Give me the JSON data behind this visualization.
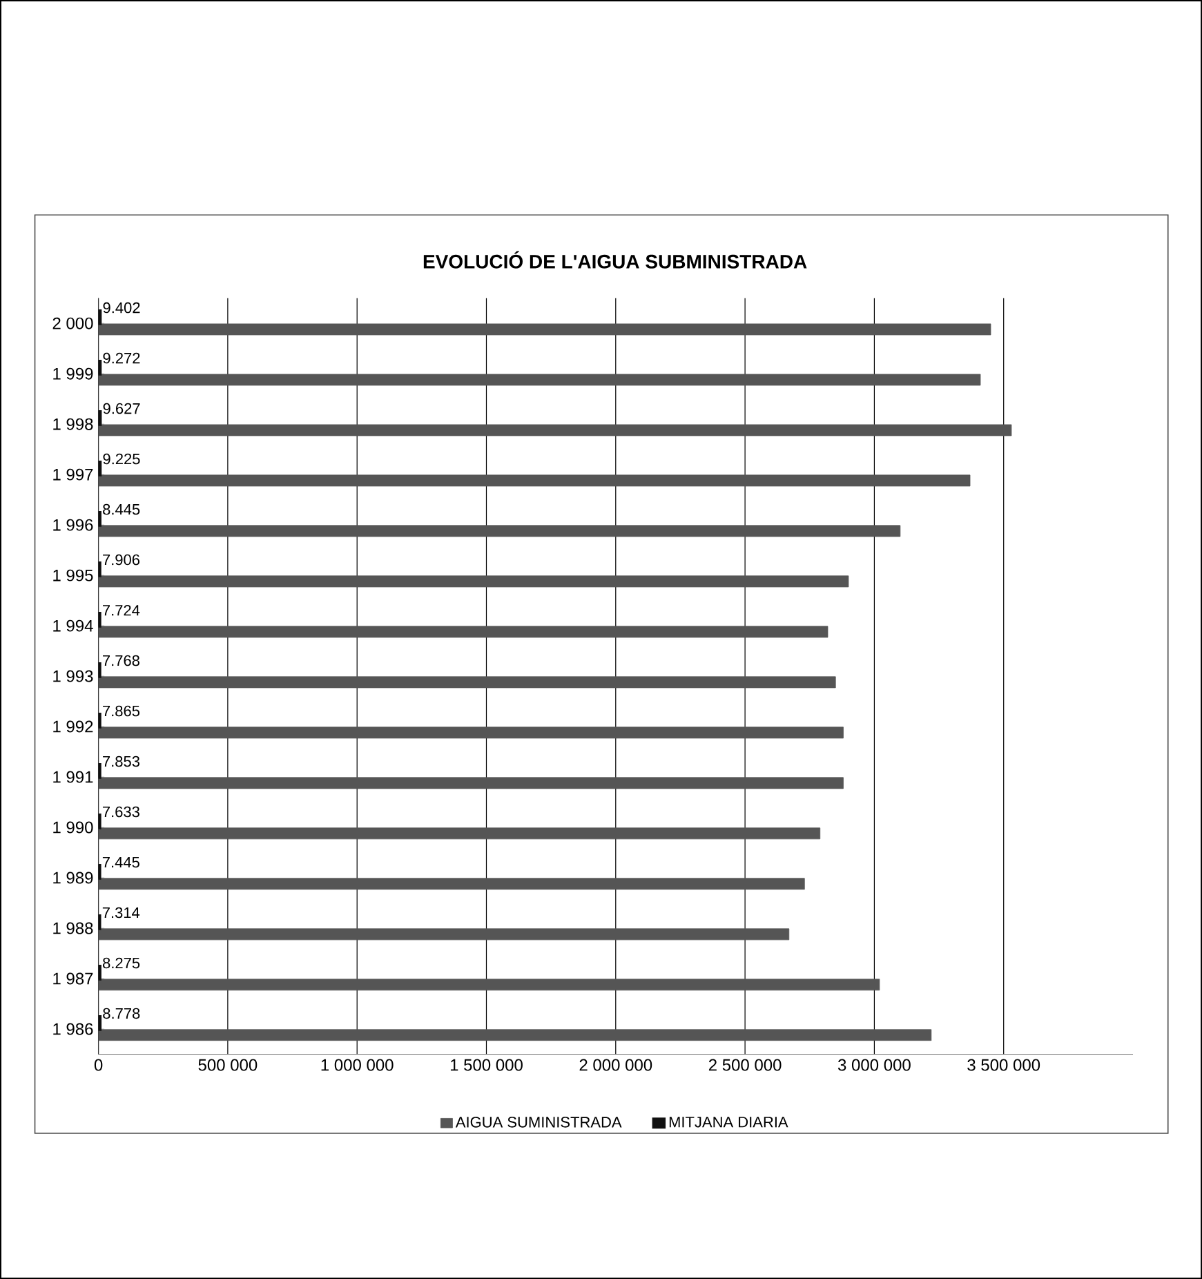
{
  "chart_data": {
    "type": "bar",
    "orientation": "horizontal",
    "title": "EVOLUCIÓ DE L'AIGUA SUBMINISTRADA",
    "categories": [
      "2 000",
      "1 999",
      "1 998",
      "1 997",
      "1 996",
      "1 995",
      "1 994",
      "1 993",
      "1 992",
      "1 991",
      "1 990",
      "1 989",
      "1 988",
      "1 987",
      "1 986"
    ],
    "series": [
      {
        "name": "AIGUA SUMINISTRADA",
        "color": "#555555",
        "values": [
          3450000,
          3410000,
          3530000,
          3370000,
          3100000,
          2900000,
          2820000,
          2850000,
          2880000,
          2880000,
          2790000,
          2730000,
          2670000,
          3020000,
          3220000
        ]
      },
      {
        "name": "MITJANA DIARIA",
        "color": "#111111",
        "values": [
          9402,
          9272,
          9627,
          9225,
          8445,
          7906,
          7724,
          7768,
          7865,
          7853,
          7633,
          7445,
          7314,
          8275,
          8778
        ],
        "value_labels": [
          "9.402",
          "9.272",
          "9.627",
          "9.225",
          "8.445",
          "7.906",
          "7.724",
          "7.768",
          "7.865",
          "7.853",
          "7.633",
          "7.445",
          "7.314",
          "8.275",
          "8.778"
        ]
      }
    ],
    "xlim": [
      0,
      4000000
    ],
    "xticks": [
      0,
      {
        "value": 500000,
        "label": "500 000"
      },
      {
        "value": 1000000,
        "label": "1 000 000"
      },
      {
        "value": 1500000,
        "label": "1 500 000"
      },
      {
        "value": 2000000,
        "label": "2 000 000"
      },
      {
        "value": 2500000,
        "label": "2 500 000"
      },
      {
        "value": 3000000,
        "label": "3 000 000"
      },
      {
        "value": 3500000,
        "label": "3 500 000"
      }
    ],
    "grid": "x",
    "legend": "bottom"
  }
}
